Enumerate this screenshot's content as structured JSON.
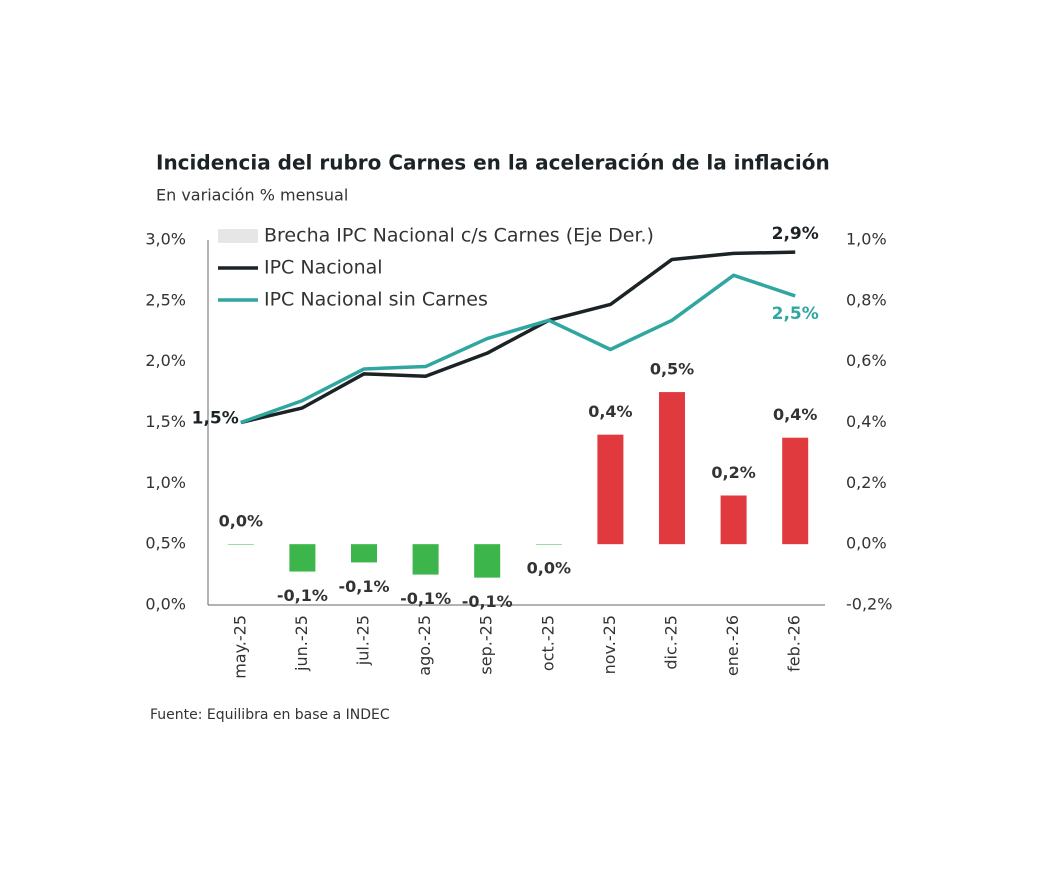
{
  "chart_data": {
    "type": "bar-line",
    "title": "Incidencia del rubro Carnes en la aceleración de la inflación",
    "subtitle": "En variación % mensual",
    "source": "Fuente: Equilibra en base a INDEC",
    "categories": [
      "may.-25",
      "jun.-25",
      "jul.-25",
      "ago.-25",
      "sep.-25",
      "oct.-25",
      "nov.-25",
      "dic.-25",
      "ene.-26",
      "feb.-26"
    ],
    "ylim": [
      0,
      3
    ],
    "yticks": [
      {
        "value": 0,
        "label": "0,0%"
      },
      {
        "value": 0.5,
        "label": "0,5%"
      },
      {
        "value": 1,
        "label": "1,0%"
      },
      {
        "value": 1.5,
        "label": "1,5%"
      },
      {
        "value": 2,
        "label": "2,0%"
      },
      {
        "value": 2.5,
        "label": "2,5%"
      },
      {
        "value": 3,
        "label": "3,0%"
      }
    ],
    "y2lim": [
      -0.2,
      1
    ],
    "y2ticks": [
      {
        "value": -0.2,
        "label": "-0,2%"
      },
      {
        "value": 0,
        "label": "0,0%"
      },
      {
        "value": 0.2,
        "label": "0,2%"
      },
      {
        "value": 0.4,
        "label": "0,4%"
      },
      {
        "value": 0.6,
        "label": "0,6%"
      },
      {
        "value": 0.8,
        "label": "0,8%"
      },
      {
        "value": 1,
        "label": "1,0%"
      }
    ],
    "series": [
      {
        "name": "Brecha IPC Nacional c/s Carnes (Eje Der.)",
        "type": "bar",
        "axis": "y2",
        "color": "#e6e6e6",
        "colors": [
          "#3cb54a",
          "#3cb54a",
          "#3cb54a",
          "#3cb54a",
          "#3cb54a",
          "#3cb54a",
          "#e03a3e",
          "#e03a3e",
          "#e03a3e",
          "#e03a3e"
        ],
        "values": [
          0,
          -0.09,
          -0.06,
          -0.1,
          -0.11,
          0,
          0.36,
          0.5,
          0.16,
          0.35
        ],
        "value_labels": [
          "0,0%",
          "-0,1%",
          "-0,1%",
          "-0,1%",
          "-0,1%",
          "0,0%",
          "0,4%",
          "0,5%",
          "0,2%",
          "0,4%"
        ]
      },
      {
        "name": "IPC Nacional",
        "type": "line",
        "color": "#1c2326",
        "values": [
          1.5,
          1.62,
          1.9,
          1.88,
          2.07,
          2.34,
          2.47,
          2.84,
          2.89,
          2.9
        ],
        "value_labels": [
          "1,5%",
          null,
          null,
          null,
          null,
          null,
          null,
          null,
          null,
          "2,9%"
        ]
      },
      {
        "name": "IPC Nacional sin Carnes",
        "type": "line",
        "color": "#2fa7a0",
        "values": [
          1.5,
          1.68,
          1.94,
          1.96,
          2.19,
          2.34,
          2.1,
          2.34,
          2.71,
          2.54
        ],
        "value_labels": [
          null,
          null,
          null,
          null,
          null,
          null,
          null,
          null,
          null,
          "2,5%"
        ]
      }
    ]
  }
}
